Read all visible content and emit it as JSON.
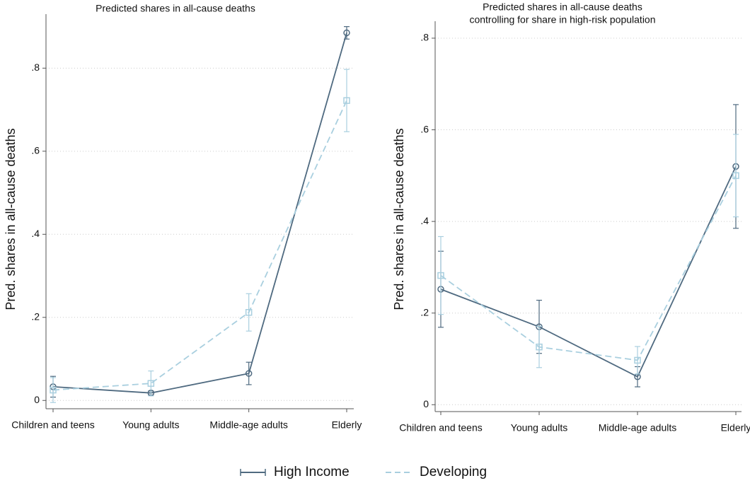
{
  "chart_data": [
    {
      "type": "line",
      "title": "Predicted shares in all-cause deaths",
      "y_label": "Pred. shares in all-cause deaths",
      "categories": [
        "Children and teens",
        "Young adults",
        "Middle-age adults",
        "Elderly"
      ],
      "ylim": [
        -0.02,
        0.93
      ],
      "yticks": [
        0,
        {
          "value": 0.2,
          "label": ".2"
        },
        {
          "value": 0.4,
          "label": ".4"
        },
        {
          "value": 0.6,
          "label": ".6"
        },
        {
          "value": 0.8,
          "label": ".8"
        }
      ],
      "grid": true,
      "series": [
        {
          "name": "High Income",
          "color": "#4f6a80",
          "marker": "circle",
          "dashed": false,
          "values": [
            0.033,
            0.018,
            0.065,
            0.885
          ],
          "errors": [
            0.025,
            0.005,
            0.027,
            0.015
          ]
        },
        {
          "name": "Developing",
          "color": "#a9cfdf",
          "marker": "square",
          "dashed": true,
          "values": [
            0.025,
            0.041,
            0.212,
            0.722
          ],
          "errors": [
            0.03,
            0.03,
            0.045,
            0.075
          ]
        }
      ]
    },
    {
      "type": "line",
      "title": "Predicted shares in all-cause deaths",
      "subtitle": "controlling for share in high-risk population",
      "y_label": "Pred. shares in all-cause deaths",
      "categories": [
        "Children and teens",
        "Young adults",
        "Middle-age adults",
        "Elderly"
      ],
      "ylim": [
        -0.015,
        0.837
      ],
      "yticks": [
        0,
        {
          "value": 0.2,
          "label": ".2"
        },
        {
          "value": 0.4,
          "label": ".4"
        },
        {
          "value": 0.6,
          "label": ".6"
        },
        {
          "value": 0.8,
          "label": ".8"
        }
      ],
      "grid": true,
      "series": [
        {
          "color": "#4f6a80",
          "marker": "circle",
          "dashed": false,
          "values": [
            0.252,
            0.17,
            0.061,
            0.52
          ],
          "errors": [
            0.083,
            0.058,
            0.022,
            0.135
          ]
        },
        {
          "color": "#a9cfdf",
          "marker": "square",
          "dashed": true,
          "values": [
            0.282,
            0.126,
            0.097,
            0.5
          ],
          "errors": [
            0.085,
            0.045,
            0.03,
            0.09
          ]
        }
      ]
    }
  ]
}
